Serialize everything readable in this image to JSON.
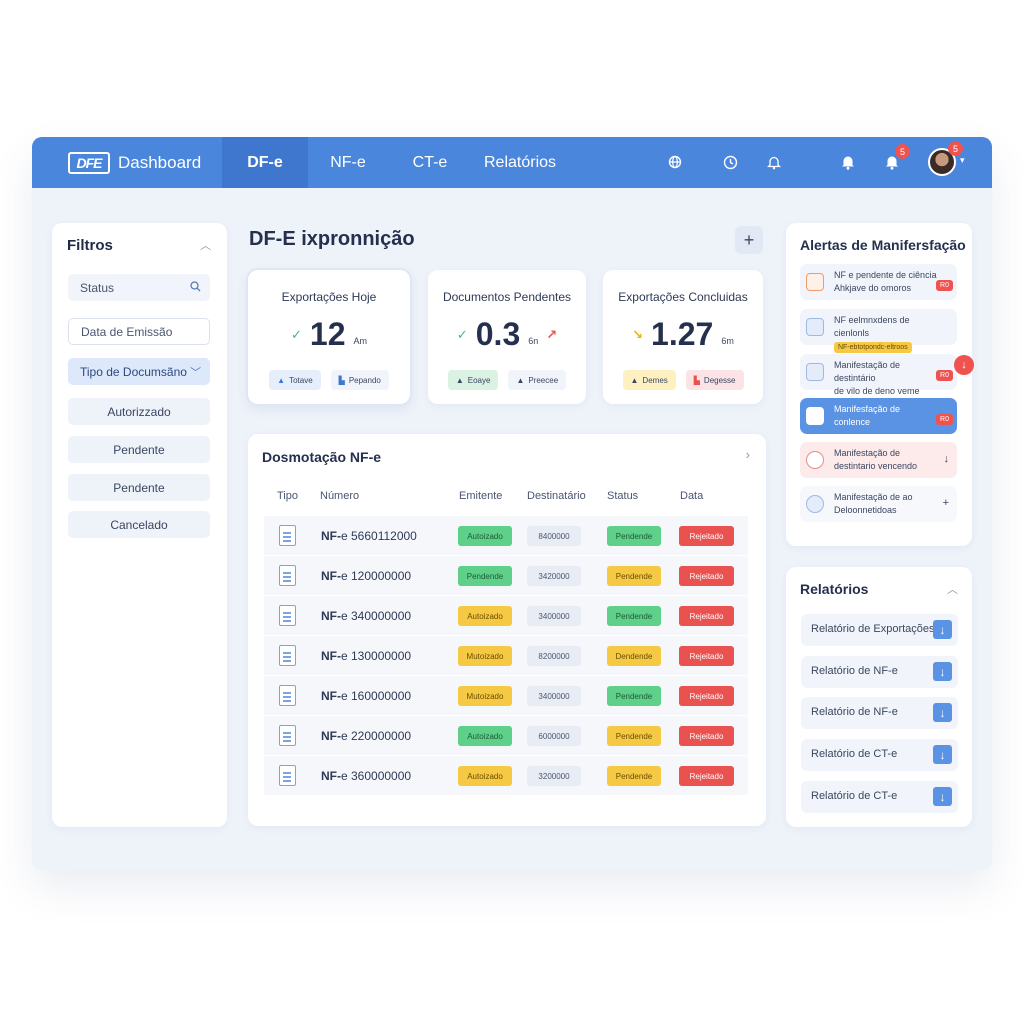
{
  "brand": {
    "logo_text": "DFE",
    "title": "Dashboard"
  },
  "nav": {
    "tabs": [
      {
        "label": "DF-e",
        "active": true
      },
      {
        "label": "NF-e",
        "active": false
      },
      {
        "label": "CT-e",
        "active": false
      },
      {
        "label": "Relatórios",
        "active": false
      }
    ]
  },
  "topbar": {
    "icons": [
      "globe-icon",
      "clock-icon",
      "bell-icon",
      "bell-icon",
      "bell-icon"
    ],
    "notification_badge": "5",
    "avatar_badge": "5"
  },
  "filters": {
    "title": "Filtros",
    "status_placeholder": "Status",
    "date_placeholder": "Data de Emissão",
    "doc_type_label": "Tipo de Documsãno",
    "options": [
      "Autorizzado",
      "Pendente",
      "Pendente",
      "Cancelado"
    ]
  },
  "main": {
    "title": "DF-E ixpronnição",
    "add_label": "+"
  },
  "stats": [
    {
      "label": "Exportações Hoje",
      "value": "12",
      "unit": "Am",
      "trend": "✓",
      "pills": [
        "Totave",
        "Pepando"
      ]
    },
    {
      "label": "Documentos Pendentes",
      "value": "0.3",
      "unit": "6n",
      "trend": "✓",
      "pills": [
        "Eoaye",
        "Preecee"
      ]
    },
    {
      "label": "Exportações Concluidas",
      "value": "1.27",
      "unit": "6m",
      "trend": "↘",
      "pills": [
        "Demes",
        "Degesse"
      ]
    }
  ],
  "table": {
    "title": "Dosmotação NF-e",
    "more": "›",
    "headers": [
      "Tipo",
      "Número",
      "Emitente",
      "Destinatário",
      "Status",
      "Data"
    ],
    "rows": [
      {
        "prefix": "NF-",
        "number": "e 5660112000",
        "emitente": "Autoizado",
        "destinatario": "8400000",
        "status": "Pendende",
        "data": "Rejeitado"
      },
      {
        "prefix": "NF-",
        "number": "e 120000000",
        "emitente": "Pendende",
        "destinatario": "3420000",
        "status": "Pendende",
        "data": "Rejeitado"
      },
      {
        "prefix": "NF-",
        "number": "e 340000000",
        "emitente": "Autoizado",
        "destinatario": "3400000",
        "status": "Pendende",
        "data": "Rejeitado"
      },
      {
        "prefix": "NF-",
        "number": "e 130000000",
        "emitente": "Mutoizado",
        "destinatario": "8200000",
        "status": "Dendende",
        "data": "Rejeitado"
      },
      {
        "prefix": "NF-",
        "number": "e 160000000",
        "emitente": "Mutoizado",
        "destinatario": "3400000",
        "status": "Pendende",
        "data": "Rejeitado"
      },
      {
        "prefix": "NF-",
        "number": "e 220000000",
        "emitente": "Autoizado",
        "destinatario": "6000000",
        "status": "Pendende",
        "data": "Rejeitado"
      },
      {
        "prefix": "NF-",
        "number": "e 360000000",
        "emitente": "Autoizado",
        "destinatario": "3200000",
        "status": "Pendende",
        "data": "Rejeitado"
      }
    ]
  },
  "alerts": {
    "title": "Alertas de Manifersfação",
    "badge": "↓",
    "items": [
      {
        "line1": "NF e pendente de ciência",
        "line2": "Ahkjave do omoros",
        "tag": "R0"
      },
      {
        "line1": "NF eelmnxdens de cienlonls",
        "line2": "NF-ebtotpondc-eltroos"
      },
      {
        "line1": "Manifestação de destintário",
        "line2": "de vilo de deno veme",
        "tag": "R0"
      },
      {
        "line1": "Manifesfação de",
        "line2": "conlence",
        "tag": "R0"
      },
      {
        "line1": "Manifestação de",
        "line2": "destintario vencendo",
        "action": "↓"
      },
      {
        "line1": "Manifestação de ao",
        "line2": "Deloonnetidoas",
        "action": "+"
      }
    ]
  },
  "reports": {
    "title": "Relatórios",
    "items": [
      "Relatório de Exportações",
      "Relatório de NF-e",
      "Relatório de NF-e",
      "Relatório de CT-e",
      "Relatório de CT-e"
    ]
  },
  "colors": {
    "primary": "#4a86dc",
    "success": "#5fd08a",
    "warning": "#f6c945",
    "danger": "#e9524f"
  }
}
